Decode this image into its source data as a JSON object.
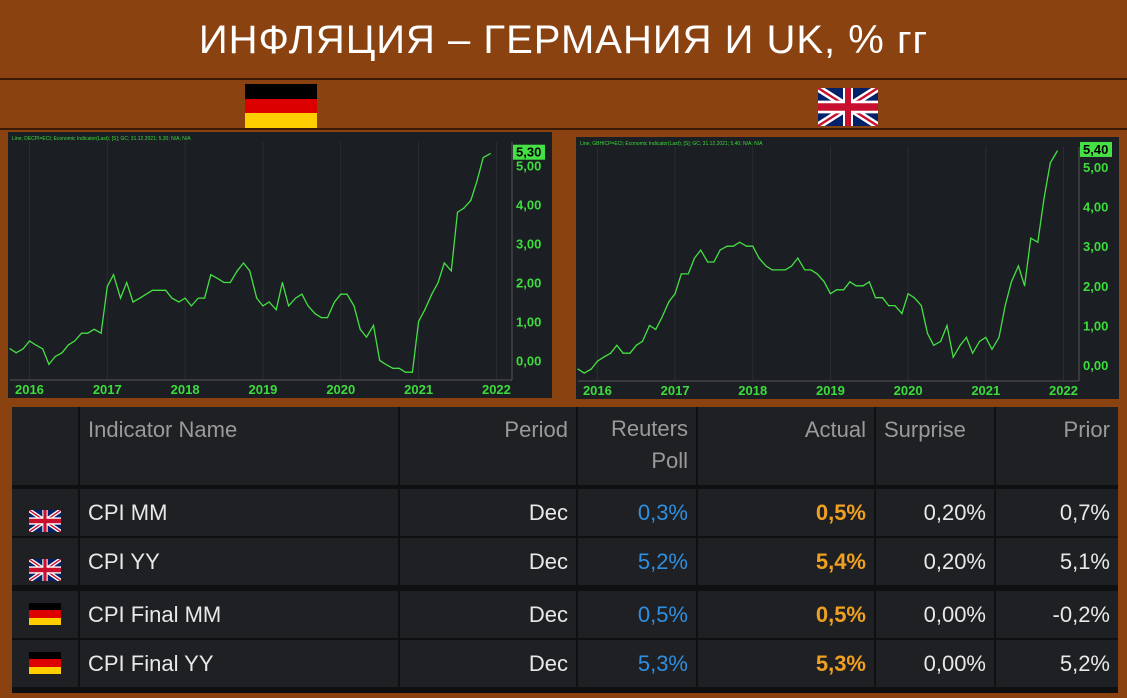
{
  "title": "ИНФЛЯЦИЯ – ГЕРМАНИЯ И UK, % гг",
  "flags": {
    "left": "germany-flag",
    "right": "uk-flag"
  },
  "colors": {
    "background": "#8a4210",
    "line": "#44e044",
    "axis_text": "#3ddc3d",
    "last_value_bg": "#44e044",
    "blue": "#2f8fe0",
    "orange": "#f0a020"
  },
  "chart_data": [
    {
      "type": "line",
      "name": "germany-cpi-yy",
      "header_text": "Line; DECPI=ECI; Economic Indicator(Last); [S]; GC; 31.12.2021; 5,30; N/A; N/A",
      "last_value_label": "5,30",
      "y_ticks": [
        "0,00",
        "1,00",
        "2,00",
        "3,00",
        "4,00",
        "5,00"
      ],
      "x_ticks": [
        "2016",
        "2017",
        "2018",
        "2019",
        "2020",
        "2021",
        "2022"
      ],
      "ylim": [
        -0.5,
        5.6
      ],
      "x": [
        2015.75,
        2015.83,
        2015.92,
        2016.0,
        2016.08,
        2016.17,
        2016.25,
        2016.33,
        2016.42,
        2016.5,
        2016.58,
        2016.67,
        2016.75,
        2016.83,
        2016.92,
        2017.0,
        2017.08,
        2017.17,
        2017.25,
        2017.33,
        2017.42,
        2017.5,
        2017.58,
        2017.67,
        2017.75,
        2017.83,
        2017.92,
        2018.0,
        2018.08,
        2018.17,
        2018.25,
        2018.33,
        2018.42,
        2018.5,
        2018.58,
        2018.67,
        2018.75,
        2018.83,
        2018.92,
        2019.0,
        2019.08,
        2019.17,
        2019.25,
        2019.33,
        2019.42,
        2019.5,
        2019.58,
        2019.67,
        2019.75,
        2019.83,
        2019.92,
        2020.0,
        2020.08,
        2020.17,
        2020.25,
        2020.33,
        2020.42,
        2020.5,
        2020.58,
        2020.67,
        2020.75,
        2020.83,
        2020.92,
        2021.0,
        2021.08,
        2021.17,
        2021.25,
        2021.33,
        2021.42,
        2021.5,
        2021.58,
        2021.67,
        2021.75,
        2021.83,
        2021.92
      ],
      "y": [
        0.3,
        0.2,
        0.3,
        0.5,
        0.4,
        0.3,
        -0.1,
        0.1,
        0.2,
        0.4,
        0.5,
        0.7,
        0.7,
        0.8,
        0.7,
        1.9,
        2.2,
        1.6,
        2.0,
        1.5,
        1.6,
        1.7,
        1.8,
        1.8,
        1.8,
        1.6,
        1.5,
        1.6,
        1.4,
        1.6,
        1.6,
        2.2,
        2.1,
        2.0,
        2.0,
        2.3,
        2.5,
        2.3,
        1.6,
        1.4,
        1.5,
        1.3,
        2.0,
        1.4,
        1.6,
        1.7,
        1.4,
        1.2,
        1.1,
        1.1,
        1.5,
        1.7,
        1.7,
        1.4,
        0.8,
        0.6,
        0.9,
        0.0,
        -0.1,
        -0.2,
        -0.2,
        -0.3,
        -0.3,
        1.0,
        1.3,
        1.7,
        2.0,
        2.5,
        2.3,
        3.8,
        3.9,
        4.1,
        4.6,
        5.2,
        5.3
      ]
    },
    {
      "type": "line",
      "name": "uk-cpi-yy",
      "header_text": "Line; GBHICP=ECI; Economic Indicator(Last); [S]; GC; 31.12.2021; 5,40; N/A; N/A",
      "last_value_label": "5,40",
      "y_ticks": [
        "0,00",
        "1,00",
        "2,00",
        "3,00",
        "4,00",
        "5,00"
      ],
      "x_ticks": [
        "2016",
        "2017",
        "2018",
        "2019",
        "2020",
        "2021",
        "2022"
      ],
      "ylim": [
        -0.4,
        5.5
      ],
      "x": [
        2015.75,
        2015.83,
        2015.92,
        2016.0,
        2016.08,
        2016.17,
        2016.25,
        2016.33,
        2016.42,
        2016.5,
        2016.58,
        2016.67,
        2016.75,
        2016.83,
        2016.92,
        2017.0,
        2017.08,
        2017.17,
        2017.25,
        2017.33,
        2017.42,
        2017.5,
        2017.58,
        2017.67,
        2017.75,
        2017.83,
        2017.92,
        2018.0,
        2018.08,
        2018.17,
        2018.25,
        2018.33,
        2018.42,
        2018.5,
        2018.58,
        2018.67,
        2018.75,
        2018.83,
        2018.92,
        2019.0,
        2019.08,
        2019.17,
        2019.25,
        2019.33,
        2019.42,
        2019.5,
        2019.58,
        2019.67,
        2019.75,
        2019.83,
        2019.92,
        2020.0,
        2020.08,
        2020.17,
        2020.25,
        2020.33,
        2020.42,
        2020.5,
        2020.58,
        2020.67,
        2020.75,
        2020.83,
        2020.92,
        2021.0,
        2021.08,
        2021.17,
        2021.25,
        2021.33,
        2021.42,
        2021.5,
        2021.58,
        2021.67,
        2021.75,
        2021.83,
        2021.92
      ],
      "y": [
        -0.1,
        -0.2,
        -0.1,
        0.1,
        0.2,
        0.3,
        0.5,
        0.3,
        0.3,
        0.5,
        0.6,
        1.0,
        0.9,
        1.2,
        1.6,
        1.8,
        2.3,
        2.3,
        2.7,
        2.9,
        2.6,
        2.6,
        2.9,
        3.0,
        3.0,
        3.1,
        3.0,
        3.0,
        2.7,
        2.5,
        2.4,
        2.4,
        2.4,
        2.5,
        2.7,
        2.4,
        2.4,
        2.3,
        2.1,
        1.8,
        1.9,
        1.9,
        2.1,
        2.0,
        2.0,
        2.1,
        1.7,
        1.7,
        1.5,
        1.5,
        1.3,
        1.8,
        1.7,
        1.5,
        0.8,
        0.5,
        0.6,
        1.0,
        0.2,
        0.5,
        0.7,
        0.3,
        0.6,
        0.7,
        0.4,
        0.7,
        1.5,
        2.1,
        2.5,
        2.0,
        3.2,
        3.1,
        4.2,
        5.1,
        5.4
      ]
    }
  ],
  "table": {
    "headers": {
      "name": "Indicator Name",
      "period": "Period",
      "poll_line1": "Reuters",
      "poll_line2": "Poll",
      "actual": "Actual",
      "surprise": "Surprise",
      "prior": "Prior"
    },
    "rows": [
      {
        "flag": "uk-flag-icon",
        "name": "CPI MM",
        "period": "Dec",
        "poll": "0,3%",
        "actual": "0,5%",
        "surprise": "0,20%",
        "prior": "0,7%"
      },
      {
        "flag": "uk-flag-icon",
        "name": "CPI YY",
        "period": "Dec",
        "poll": "5,2%",
        "actual": "5,4%",
        "surprise": "0,20%",
        "prior": "5,1%"
      },
      {
        "flag": "germany-flag-icon",
        "name": "CPI Final MM",
        "period": "Dec",
        "poll": "0,5%",
        "actual": "0,5%",
        "surprise": "0,00%",
        "prior": "-0,2%"
      },
      {
        "flag": "germany-flag-icon",
        "name": "CPI Final YY",
        "period": "Dec",
        "poll": "5,3%",
        "actual": "5,3%",
        "surprise": "0,00%",
        "prior": "5,2%"
      }
    ]
  }
}
